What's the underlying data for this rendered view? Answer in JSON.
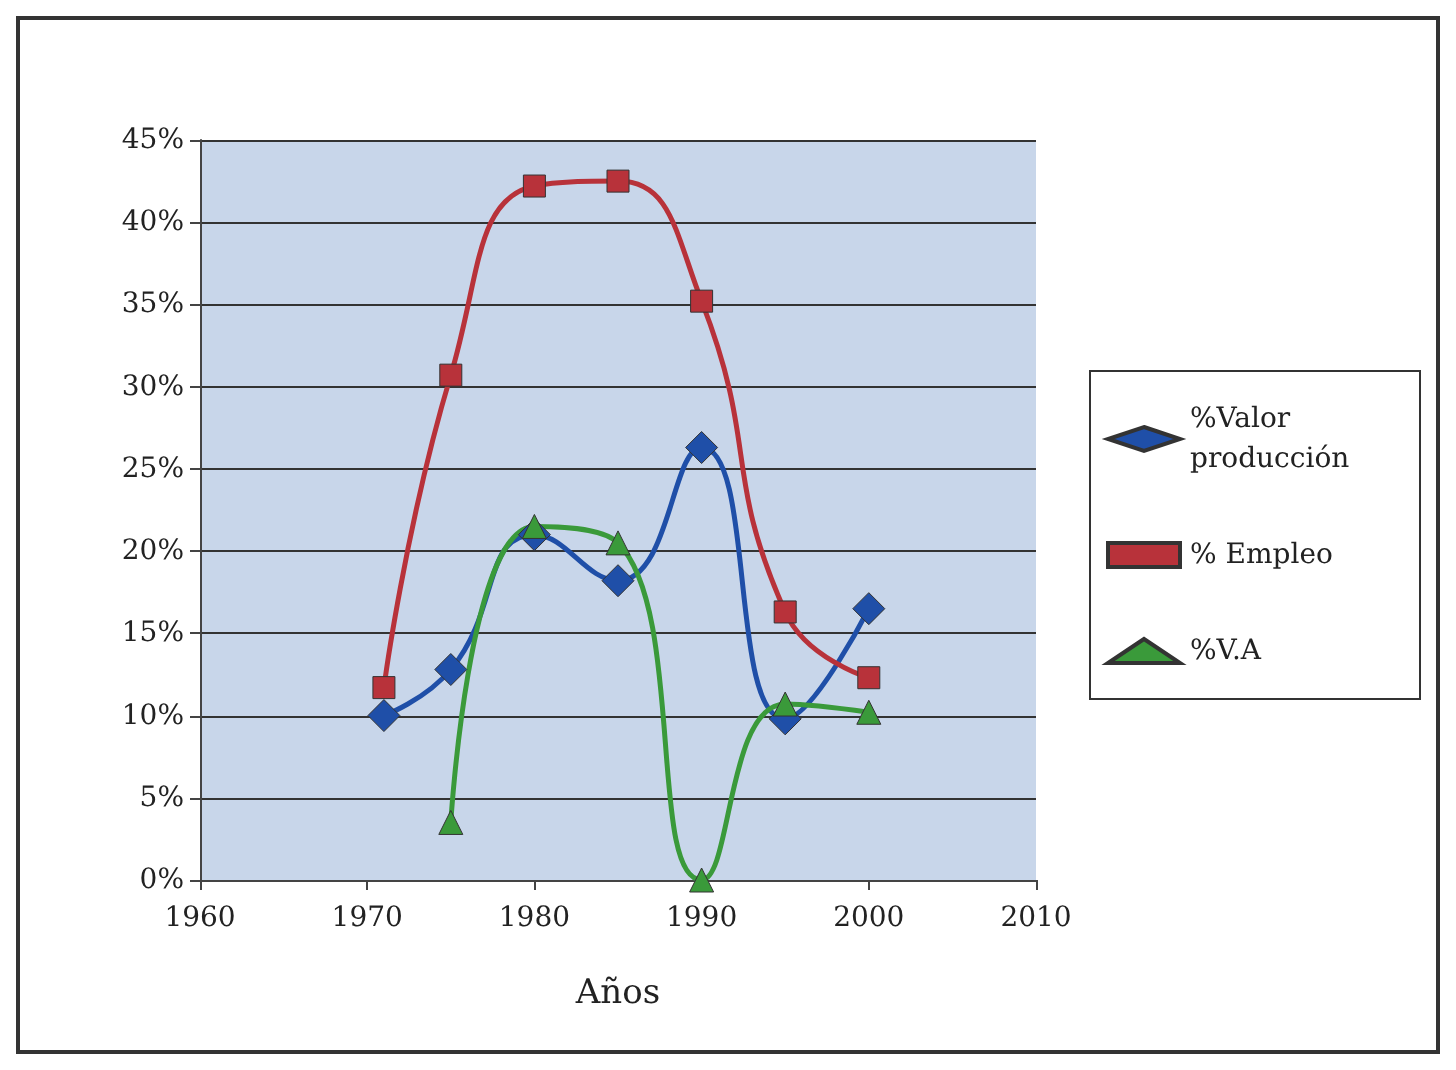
{
  "chart_data": {
    "type": "line",
    "xlabel": "Años",
    "x": [
      1971,
      1975,
      1980,
      1985,
      1990,
      1995,
      2000
    ],
    "series": [
      {
        "name": "%Valor producción",
        "color": "#1f4fa8",
        "marker": "diamond",
        "values": [
          10.0,
          12.8,
          21.0,
          18.2,
          26.3,
          9.8,
          16.5
        ]
      },
      {
        "name": "% Empleo",
        "color": "#b8323a",
        "marker": "square",
        "values": [
          11.7,
          30.7,
          42.2,
          42.5,
          35.2,
          16.3,
          12.3
        ]
      },
      {
        "name": "%V.A",
        "color": "#3a9a3a",
        "marker": "triangle",
        "values": [
          null,
          3.5,
          21.5,
          20.5,
          0,
          10.7,
          10.2
        ]
      }
    ],
    "xlim": [
      1960,
      2010
    ],
    "xticks": [
      1960,
      1970,
      1980,
      1990,
      2000,
      2010
    ],
    "ylim": [
      0,
      45
    ],
    "yticks": [
      {
        "value": 0,
        "label": "0%"
      },
      {
        "value": 5,
        "label": "5%"
      },
      {
        "value": 10,
        "label": "10%"
      },
      {
        "value": 15,
        "label": "15%"
      },
      {
        "value": 20,
        "label": "20%"
      },
      {
        "value": 25,
        "label": "25%"
      },
      {
        "value": 30,
        "label": "30%"
      },
      {
        "value": 35,
        "label": "35%"
      },
      {
        "value": 40,
        "label": "40%"
      },
      {
        "value": 45,
        "label": "45%"
      }
    ],
    "grid": "y",
    "legend": "right",
    "line_style": "solid"
  }
}
